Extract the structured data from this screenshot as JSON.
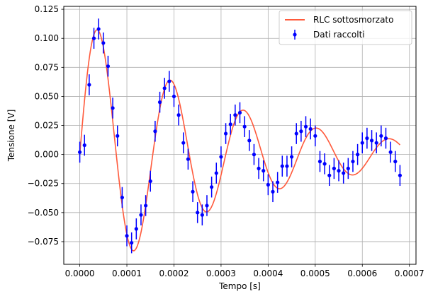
{
  "chart_data": {
    "type": "scatter",
    "xlabel": "Tempo [s]",
    "ylabel": "Tensione [V]",
    "xlim": [
      -3.4e-05,
      0.000714
    ],
    "ylim": [
      -0.0945,
      0.1275
    ],
    "grid": true,
    "legend_position": "top-right",
    "xticks": [
      {
        "value": 0.0,
        "label": "0.0000"
      },
      {
        "value": 0.0001,
        "label": "0.0001"
      },
      {
        "value": 0.0002,
        "label": "0.0002"
      },
      {
        "value": 0.0003,
        "label": "0.0003"
      },
      {
        "value": 0.0004,
        "label": "0.0004"
      },
      {
        "value": 0.0005,
        "label": "0.0005"
      },
      {
        "value": 0.0006,
        "label": "0.0006"
      },
      {
        "value": 0.0007,
        "label": "0.0007"
      }
    ],
    "yticks": [
      {
        "value": -0.075,
        "label": "−0.075"
      },
      {
        "value": -0.05,
        "label": "−0.050"
      },
      {
        "value": -0.025,
        "label": "−0.025"
      },
      {
        "value": 0.0,
        "label": "0.000"
      },
      {
        "value": 0.025,
        "label": "0.025"
      },
      {
        "value": 0.05,
        "label": "0.050"
      },
      {
        "value": 0.075,
        "label": "0.075"
      },
      {
        "value": 0.1,
        "label": "0.100"
      },
      {
        "value": 0.125,
        "label": "0.125"
      }
    ],
    "series": [
      {
        "name": "RLC sottosmorzato",
        "kind": "line",
        "color": "#ff5a3c",
        "tau": 0.0003,
        "period": 0.000155,
        "amplitude": 0.1217,
        "x_range": [
          0.0,
          0.00068
        ]
      },
      {
        "name": "Dati raccolti",
        "kind": "errorbar",
        "color": "#0000ff",
        "yerr": 0.009,
        "points": [
          [
            0.0,
            0.002
          ],
          [
            1e-05,
            0.008
          ],
          [
            2e-05,
            0.06
          ],
          [
            3e-05,
            0.1
          ],
          [
            4e-05,
            0.108
          ],
          [
            5e-05,
            0.096
          ],
          [
            6e-05,
            0.076
          ],
          [
            7e-05,
            0.04
          ],
          [
            8e-05,
            0.016
          ],
          [
            9e-05,
            -0.037
          ],
          [
            0.0001,
            -0.07
          ],
          [
            0.00011,
            -0.076
          ],
          [
            0.00012,
            -0.064
          ],
          [
            0.00013,
            -0.052
          ],
          [
            0.00014,
            -0.044
          ],
          [
            0.00015,
            -0.023
          ],
          [
            0.00016,
            0.02
          ],
          [
            0.00017,
            0.045
          ],
          [
            0.00018,
            0.057
          ],
          [
            0.00019,
            0.063
          ],
          [
            0.0002,
            0.05
          ],
          [
            0.00021,
            0.034
          ],
          [
            0.00022,
            0.01
          ],
          [
            0.00023,
            -0.004
          ],
          [
            0.00024,
            -0.032
          ],
          [
            0.00025,
            -0.05
          ],
          [
            0.00026,
            -0.052
          ],
          [
            0.00027,
            -0.044
          ],
          [
            0.00028,
            -0.028
          ],
          [
            0.00029,
            -0.016
          ],
          [
            0.0003,
            -0.002
          ],
          [
            0.00031,
            0.018
          ],
          [
            0.00032,
            0.026
          ],
          [
            0.00033,
            0.034
          ],
          [
            0.00034,
            0.036
          ],
          [
            0.00035,
            0.024
          ],
          [
            0.00036,
            0.012
          ],
          [
            0.00037,
            0.0
          ],
          [
            0.00038,
            -0.012
          ],
          [
            0.00039,
            -0.014
          ],
          [
            0.0004,
            -0.026
          ],
          [
            0.00041,
            -0.032
          ],
          [
            0.00042,
            -0.024
          ],
          [
            0.00043,
            -0.01
          ],
          [
            0.00044,
            -0.01
          ],
          [
            0.00045,
            -0.002
          ],
          [
            0.00046,
            0.018
          ],
          [
            0.00047,
            0.02
          ],
          [
            0.00048,
            0.024
          ],
          [
            0.00049,
            0.022
          ],
          [
            0.0005,
            0.016
          ],
          [
            0.00051,
            -0.006
          ],
          [
            0.00052,
            -0.008
          ],
          [
            0.00053,
            -0.018
          ],
          [
            0.00054,
            -0.012
          ],
          [
            0.00055,
            -0.014
          ],
          [
            0.00056,
            -0.016
          ],
          [
            0.00057,
            -0.012
          ],
          [
            0.00058,
            -0.006
          ],
          [
            0.00059,
            0.0
          ],
          [
            0.0006,
            0.01
          ],
          [
            0.00061,
            0.014
          ],
          [
            0.00062,
            0.012
          ],
          [
            0.00063,
            0.01
          ],
          [
            0.00064,
            0.016
          ],
          [
            0.00065,
            0.014
          ],
          [
            0.00066,
            0.002
          ],
          [
            0.00067,
            -0.006
          ],
          [
            0.00068,
            -0.018
          ]
        ]
      }
    ]
  }
}
